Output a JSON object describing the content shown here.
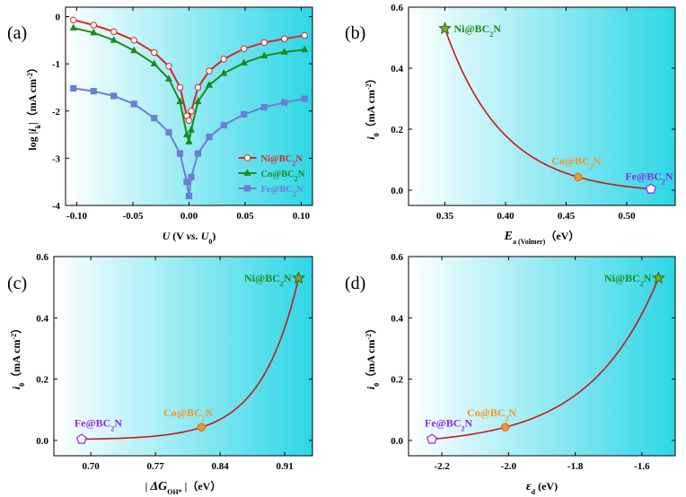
{
  "figure": {
    "panel_labels": [
      "(a)",
      "(b)",
      "(c)",
      "(d)"
    ]
  },
  "colors": {
    "ni": "#d42a2a",
    "co": "#1d8a1d",
    "fe": "#6a7fd6",
    "curve": "#c41a1a",
    "co_marker": "#f0962c",
    "fe_marker": "#8a2be2",
    "ni_star": "#7aa82a",
    "bg_left": "#ffffff",
    "bg_right": "#2ed6e6"
  },
  "chart_data": [
    {
      "type": "line",
      "panel": "(a)",
      "title": "",
      "ylabel": "log|i_k| (mA cm^-2)",
      "ylabel_parts": {
        "pre": "log",
        "bar1": "|",
        "var": "i",
        "sub": "k",
        "bar2": "|",
        "unit_open": "（mA cm",
        "unit_sup": "-2",
        "unit_close": "）"
      },
      "xlabel": "U (V vs. U0)",
      "xlabel_parts": {
        "var": "U",
        "open": " (V ",
        "vs": "vs.",
        "u": " U",
        "sub": "0",
        "close": ")"
      },
      "xlim": [
        -0.11,
        0.11
      ],
      "ylim": [
        -4,
        0.2
      ],
      "xticks": [
        -0.1,
        -0.05,
        0.0,
        0.05,
        0.1
      ],
      "xtick_labels": [
        "-0.10",
        "-0.05",
        "0.00",
        "0.05",
        "0.10"
      ],
      "yticks": [
        0,
        -1,
        -2,
        -3,
        -4
      ],
      "ytick_labels": [
        "0",
        "-1",
        "-2",
        "-3",
        "-4"
      ],
      "legend_position": "lower-right",
      "series": [
        {
          "name": "Ni@BC2N",
          "name_parts": {
            "pre": "Ni@BC",
            "sub": "2",
            "post": "N"
          },
          "marker": "circle",
          "x": [
            -0.103,
            -0.085,
            -0.067,
            -0.049,
            -0.031,
            -0.018,
            -0.008,
            -0.002,
            0.0,
            0.002,
            0.008,
            0.018,
            0.031,
            0.049,
            0.067,
            0.085,
            0.103
          ],
          "y": [
            -0.07,
            -0.18,
            -0.32,
            -0.5,
            -0.76,
            -1.05,
            -1.5,
            -2.1,
            -2.2,
            -2.0,
            -1.5,
            -1.15,
            -0.9,
            -0.68,
            -0.55,
            -0.47,
            -0.4
          ]
        },
        {
          "name": "Co@BC2N",
          "name_parts": {
            "pre": "Co@BC",
            "sub": "2",
            "post": "N"
          },
          "marker": "triangle",
          "x": [
            -0.103,
            -0.085,
            -0.067,
            -0.049,
            -0.031,
            -0.018,
            -0.008,
            -0.002,
            0.0,
            0.002,
            0.008,
            0.018,
            0.031,
            0.049,
            0.067,
            0.085,
            0.103
          ],
          "y": [
            -0.24,
            -0.34,
            -0.5,
            -0.72,
            -1.0,
            -1.32,
            -1.8,
            -2.5,
            -2.65,
            -2.4,
            -1.8,
            -1.45,
            -1.2,
            -0.98,
            -0.83,
            -0.75,
            -0.7
          ]
        },
        {
          "name": "Fe@BC2N",
          "name_parts": {
            "pre": "Fe@BC",
            "sub": "2",
            "post": "N"
          },
          "marker": "square",
          "x": [
            -0.103,
            -0.085,
            -0.067,
            -0.049,
            -0.031,
            -0.018,
            -0.008,
            -0.002,
            0.0,
            0.002,
            0.008,
            0.018,
            0.031,
            0.049,
            0.067,
            0.085,
            0.103
          ],
          "y": [
            -1.52,
            -1.58,
            -1.68,
            -1.85,
            -2.15,
            -2.45,
            -2.9,
            -3.5,
            -3.8,
            -3.4,
            -2.9,
            -2.55,
            -2.3,
            -2.07,
            -1.92,
            -1.82,
            -1.74
          ]
        }
      ]
    },
    {
      "type": "scatter",
      "panel": "(b)",
      "title": "",
      "ylabel": "i0 (mA cm^-2)",
      "ylabel_parts": {
        "var": "i",
        "sub": "0",
        "unit_open": "（mA cm",
        "unit_sup": "-2",
        "unit_close": "）"
      },
      "xlabel": "Ea(Volmer) (eV)",
      "xlabel_parts": {
        "var": "E",
        "sub": "a (Volmer)",
        "unit": "（eV）"
      },
      "xlim": [
        0.32,
        0.54
      ],
      "ylim": [
        -0.05,
        0.6
      ],
      "xticks": [
        0.35,
        0.4,
        0.45,
        0.5
      ],
      "xtick_labels": [
        "0.35",
        "0.40",
        "0.45",
        "0.50"
      ],
      "yticks": [
        0.0,
        0.2,
        0.4,
        0.6
      ],
      "ytick_labels": [
        "0.0",
        "0.2",
        "0.4",
        "0.6"
      ],
      "fit": "exponential-decay",
      "points": [
        {
          "label": "Ni@BC2N",
          "label_parts": {
            "pre": "Ni@BC",
            "sub": "2",
            "post": "N"
          },
          "x": 0.35,
          "y": 0.53,
          "marker": "star"
        },
        {
          "label": "Co@BC2N",
          "label_parts": {
            "pre": "Co@BC",
            "sub": "2",
            "post": "N"
          },
          "x": 0.46,
          "y": 0.043,
          "marker": "circle"
        },
        {
          "label": "Fe@BC2N",
          "label_parts": {
            "pre": "Fe@BC",
            "sub": "2",
            "post": "N"
          },
          "x": 0.52,
          "y": 0.004,
          "marker": "pentagon"
        }
      ]
    },
    {
      "type": "scatter",
      "panel": "(c)",
      "title": "",
      "ylabel": "i0 (mA cm^-2)",
      "ylabel_parts": {
        "var": "i",
        "sub": "0",
        "unit_open": "（mA cm",
        "unit_sup": "-2",
        "unit_close": "）"
      },
      "xlabel": "|ΔGOH*| (eV)",
      "xlabel_parts": {
        "bar1": "|",
        "var": "ΔG",
        "sub": "OH*",
        "bar2": "|",
        "unit": "（eV）"
      },
      "xlim": [
        0.66,
        0.94
      ],
      "ylim": [
        -0.05,
        0.6
      ],
      "xticks": [
        0.7,
        0.77,
        0.84,
        0.91
      ],
      "xtick_labels": [
        "0.70",
        "0.77",
        "0.84",
        "0.91"
      ],
      "yticks": [
        0.0,
        0.2,
        0.4,
        0.6
      ],
      "ytick_labels": [
        "0.0",
        "0.2",
        "0.4",
        "0.6"
      ],
      "fit": "exponential-growth",
      "points": [
        {
          "label": "Fe@BC2N",
          "label_parts": {
            "pre": "Fe@BC",
            "sub": "2",
            "post": "N"
          },
          "x": 0.69,
          "y": 0.004,
          "marker": "pentagon"
        },
        {
          "label": "Co@BC2N",
          "label_parts": {
            "pre": "Co@BC",
            "sub": "2",
            "post": "N"
          },
          "x": 0.82,
          "y": 0.043,
          "marker": "circle"
        },
        {
          "label": "Ni@BC2N",
          "label_parts": {
            "pre": "Ni@BC",
            "sub": "2",
            "post": "N"
          },
          "x": 0.925,
          "y": 0.53,
          "marker": "star"
        }
      ]
    },
    {
      "type": "scatter",
      "panel": "(d)",
      "title": "",
      "ylabel": "i0 (mA cm^-2)",
      "ylabel_parts": {
        "var": "i",
        "sub": "0",
        "unit_open": "（mA cm",
        "unit_sup": "-2",
        "unit_close": "）"
      },
      "xlabel": "εd (eV)",
      "xlabel_parts": {
        "var": "ε",
        "sub": "d",
        "unit": " (eV)"
      },
      "xlim": [
        -2.3,
        -1.5
      ],
      "ylim": [
        -0.05,
        0.6
      ],
      "xticks": [
        -2.2,
        -2.0,
        -1.8,
        -1.6
      ],
      "xtick_labels": [
        "-2.2",
        "-2.0",
        "-1.8",
        "-1.6"
      ],
      "yticks": [
        0.0,
        0.2,
        0.4,
        0.6
      ],
      "ytick_labels": [
        "0.0",
        "0.2",
        "0.4",
        "0.6"
      ],
      "fit": "exponential-growth",
      "points": [
        {
          "label": "Fe@BC2N",
          "label_parts": {
            "pre": "Fe@BC",
            "sub": "2",
            "post": "N"
          },
          "x": -2.23,
          "y": 0.004,
          "marker": "pentagon"
        },
        {
          "label": "Co@BC2N",
          "label_parts": {
            "pre": "Co@BC",
            "sub": "2",
            "post": "N"
          },
          "x": -2.01,
          "y": 0.043,
          "marker": "circle"
        },
        {
          "label": "Ni@BC2N",
          "label_parts": {
            "pre": "Ni@BC",
            "sub": "2",
            "post": "N"
          },
          "x": -1.55,
          "y": 0.53,
          "marker": "star"
        }
      ]
    }
  ]
}
